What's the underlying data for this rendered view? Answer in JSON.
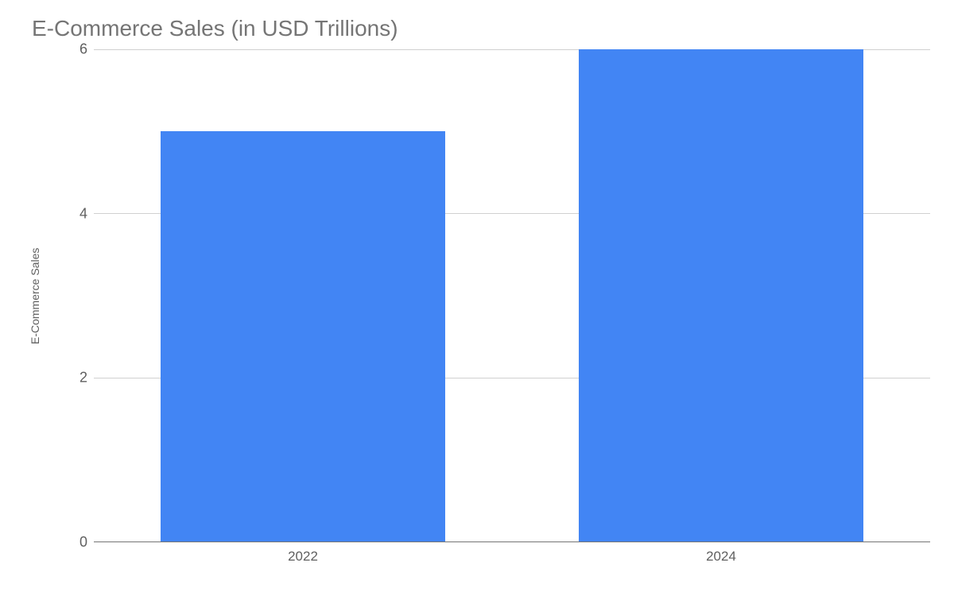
{
  "chart": {
    "type": "bar",
    "title": "E-Commerce Sales (in USD Trillions)",
    "title_fontsize": 28,
    "title_color": "#757575",
    "ylabel": "E-Commerce Sales",
    "ylabel_fontsize": 14,
    "ylabel_color": "#5f5f5f",
    "categories": [
      "2022",
      "2024"
    ],
    "values": [
      5.0,
      6.0
    ],
    "bar_colors": [
      "#4285f4",
      "#4285f4"
    ],
    "bar_width": 0.68,
    "ylim": [
      0,
      6
    ],
    "ytick_step": 2,
    "yticks": [
      0,
      2,
      4,
      6
    ],
    "tick_fontsize": 18,
    "tick_color": "#5f5f5f",
    "xtick_fontsize": 17,
    "background_color": "#ffffff",
    "grid_color": "#d0d0d0",
    "axis_line_color": "#757575"
  }
}
